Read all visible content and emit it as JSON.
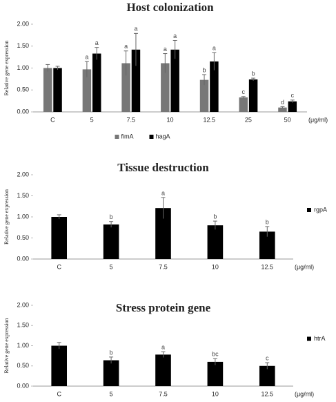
{
  "chart_data": [
    {
      "type": "bar",
      "title": "Host colonization",
      "y_label": "Relative gene expression",
      "x_label": "(μg/ml)",
      "categories": [
        "C",
        "5",
        "7.5",
        "10",
        "12.5",
        "25",
        "50"
      ],
      "series": [
        {
          "name": "fimA",
          "color": "#777777",
          "values": [
            1.0,
            0.97,
            1.11,
            1.11,
            0.73,
            0.33,
            0.1
          ],
          "errors": [
            0.08,
            0.18,
            0.28,
            0.22,
            0.12,
            0.02,
            0.02
          ],
          "letters": [
            null,
            "a",
            "a",
            "a",
            "b",
            "c",
            "d"
          ]
        },
        {
          "name": "hagA",
          "color": "#000000",
          "values": [
            1.0,
            1.33,
            1.42,
            1.42,
            1.15,
            0.74,
            0.24
          ],
          "errors": [
            0.04,
            0.14,
            0.37,
            0.21,
            0.2,
            0.03,
            0.03
          ],
          "letters": [
            null,
            "a",
            "a",
            "a",
            "a",
            "b",
            "c"
          ]
        }
      ],
      "ylim": [
        0,
        2
      ],
      "yticks": [
        {
          "value": 0,
          "label": "0.00"
        },
        {
          "value": 0.5,
          "label": "0.50"
        },
        {
          "value": 1,
          "label": "1.00"
        },
        {
          "value": 1.5,
          "label": "1.50"
        },
        {
          "value": 2,
          "label": "2.00"
        }
      ],
      "legend": "bottom"
    },
    {
      "type": "bar",
      "title": "Tissue destruction",
      "y_label": "Relative gene expression",
      "x_label": "(μg/ml)",
      "categories": [
        "C",
        "5",
        "7.5",
        "10",
        "12.5"
      ],
      "series": [
        {
          "name": "rgpA",
          "color": "#000000",
          "values": [
            1.0,
            0.82,
            1.21,
            0.8,
            0.65
          ],
          "errors": [
            0.05,
            0.07,
            0.25,
            0.1,
            0.12
          ],
          "letters": [
            null,
            "b",
            "a",
            "b",
            "b"
          ]
        }
      ],
      "ylim": [
        0,
        2
      ],
      "yticks": [
        {
          "value": 0,
          "label": "0.00"
        },
        {
          "value": 0.5,
          "label": "0.50"
        },
        {
          "value": 1,
          "label": "1.00"
        },
        {
          "value": 1.5,
          "label": "1.50"
        },
        {
          "value": 2,
          "label": "2.00"
        }
      ],
      "legend": "right"
    },
    {
      "type": "bar",
      "title": "Stress protein gene",
      "y_label": "Relative gene expression",
      "x_label": "(μg/ml)",
      "categories": [
        "C",
        "5",
        "7.5",
        "10",
        "12.5"
      ],
      "series": [
        {
          "name": "htrA",
          "color": "#000000",
          "values": [
            1.0,
            0.64,
            0.78,
            0.6,
            0.5
          ],
          "errors": [
            0.08,
            0.08,
            0.07,
            0.08,
            0.08
          ],
          "letters": [
            null,
            "b",
            "a",
            "bc",
            "c"
          ]
        }
      ],
      "ylim": [
        0,
        2
      ],
      "yticks": [
        {
          "value": 0,
          "label": "0.00"
        },
        {
          "value": 0.5,
          "label": "0.50"
        },
        {
          "value": 1,
          "label": "1.00"
        },
        {
          "value": 1.5,
          "label": "1.50"
        },
        {
          "value": 2,
          "label": "2.00"
        }
      ],
      "legend": "right"
    }
  ]
}
